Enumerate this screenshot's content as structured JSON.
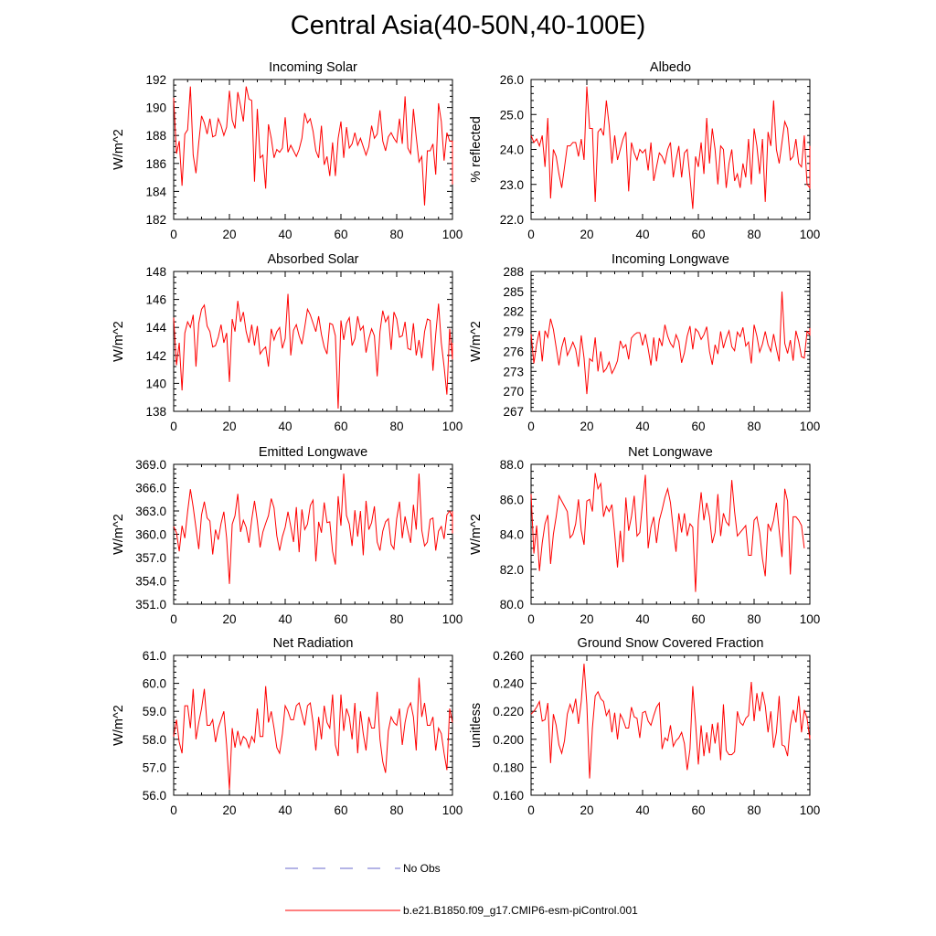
{
  "figure": {
    "title": "Central Asia(40-50N,40-100E)",
    "series_color": "#ff0000",
    "obs_color": "#6a6acd",
    "legend": [
      {
        "label": "No Obs",
        "style": "dashed",
        "color": "#6a6acd"
      },
      {
        "label": "b.e21.B1850.f09_g17.CMIP6-esm-piControl.001",
        "style": "solid",
        "color": "#ff0000"
      }
    ]
  },
  "chart_data": [
    {
      "type": "line",
      "id": "incoming-solar",
      "title": "Incoming Solar",
      "ylabel": "W/m^2",
      "xlabel": "",
      "xlim": [
        0,
        100
      ],
      "xticks": [
        0,
        20,
        40,
        60,
        80,
        100
      ],
      "xtick_labels": [
        "0",
        "20",
        "40",
        "60",
        "80",
        "100"
      ],
      "ylim": [
        182,
        192
      ],
      "yticks": [
        182,
        184,
        186,
        188,
        190,
        192
      ],
      "ytick_labels": [
        "182",
        "184",
        "186",
        "188",
        "190",
        "192"
      ],
      "x0": 0,
      "dx": 1,
      "values": [
        190.7,
        186.7,
        187.6,
        184.4,
        188.1,
        188.4,
        191.5,
        186.6,
        185.3,
        187.5,
        189.4,
        188.9,
        188.1,
        189.2,
        187.9,
        188.0,
        189.2,
        188.7,
        188.0,
        188.6,
        191.2,
        189.1,
        188.5,
        191.1,
        190.1,
        189.0,
        191.5,
        190.6,
        190.5,
        184.7,
        189.9,
        186.4,
        186.6,
        184.2,
        188.8,
        187.8,
        186.4,
        187.0,
        186.8,
        187.1,
        189.3,
        186.8,
        187.3,
        186.9,
        186.5,
        187.0,
        187.8,
        189.6,
        188.9,
        189.2,
        188.3,
        186.9,
        186.4,
        188.7,
        185.9,
        186.5,
        185.1,
        187.5,
        185.1,
        187.8,
        189.0,
        186.4,
        188.6,
        187.1,
        187.4,
        188.2,
        187.3,
        187.8,
        187.2,
        186.6,
        187.2,
        188.7,
        187.8,
        188.1,
        189.8,
        187.6,
        186.9,
        187.9,
        188.2,
        187.8,
        187.5,
        189.2,
        187.4,
        190.8,
        187.1,
        186.7,
        189.9,
        187.9,
        186.1,
        186.5,
        183.0,
        186.9,
        186.9,
        187.4,
        185.2,
        190.3,
        189.0,
        186.2,
        188.2,
        187.6,
        187.6,
        185.5,
        184.5
      ]
    },
    {
      "type": "line",
      "id": "albedo",
      "title": "Albedo",
      "ylabel": "% reflected",
      "xlabel": "",
      "xlim": [
        0,
        100
      ],
      "xticks": [
        0,
        20,
        40,
        60,
        80,
        100
      ],
      "xtick_labels": [
        "0",
        "20",
        "40",
        "60",
        "80",
        "100"
      ],
      "ylim": [
        22.0,
        26.0
      ],
      "yticks": [
        22.0,
        23.0,
        24.0,
        25.0,
        26.0
      ],
      "ytick_labels": [
        "22.0",
        "23.0",
        "24.0",
        "25.0",
        "26.0"
      ],
      "x0": 0,
      "dx": 1,
      "values": [
        24.4,
        24.2,
        24.3,
        24.1,
        24.4,
        23.5,
        24.9,
        22.6,
        24.0,
        23.8,
        23.3,
        22.9,
        23.5,
        24.1,
        24.1,
        24.2,
        24.2,
        23.8,
        24.3,
        23.7,
        25.8,
        24.6,
        24.6,
        22.5,
        24.5,
        24.6,
        24.4,
        25.4,
        24.7,
        23.6,
        24.4,
        23.7,
        24.0,
        24.3,
        24.5,
        22.8,
        24.2,
        23.9,
        23.7,
        24.0,
        23.9,
        24.0,
        23.4,
        24.2,
        23.1,
        23.5,
        23.9,
        23.8,
        23.6,
        24.0,
        24.2,
        23.2,
        23.7,
        24.1,
        23.2,
        23.9,
        24.0,
        23.2,
        22.3,
        23.8,
        23.5,
        24.2,
        23.3,
        24.9,
        23.6,
        24.6,
        24.0,
        23.0,
        24.1,
        24.0,
        22.9,
        23.6,
        24.0,
        23.1,
        23.3,
        22.9,
        23.6,
        23.2,
        24.3,
        23.0,
        24.6,
        24.1,
        23.3,
        24.3,
        22.5,
        24.5,
        24.1,
        25.4,
        24.0,
        23.6,
        24.2,
        24.8,
        24.6,
        23.7,
        23.8,
        24.3,
        23.6,
        23.5,
        24.4,
        23.0,
        22.9,
        24.1,
        23.3
      ]
    },
    {
      "type": "line",
      "id": "absorbed-solar",
      "title": "Absorbed Solar",
      "ylabel": "W/m^2",
      "xlabel": "",
      "xlim": [
        0,
        100
      ],
      "xticks": [
        0,
        20,
        40,
        60,
        80,
        100
      ],
      "xtick_labels": [
        "0",
        "20",
        "40",
        "60",
        "80",
        "100"
      ],
      "ylim": [
        138,
        148
      ],
      "yticks": [
        138,
        140,
        142,
        144,
        146,
        148
      ],
      "ytick_labels": [
        "138",
        "140",
        "142",
        "144",
        "146",
        "148"
      ],
      "x0": 0,
      "dx": 1,
      "values": [
        144.7,
        141.3,
        142.9,
        139.5,
        143.6,
        144.4,
        144.0,
        144.9,
        141.2,
        144.3,
        145.3,
        145.6,
        144.1,
        143.7,
        142.6,
        142.7,
        143.3,
        144.2,
        142.9,
        143.6,
        140.1,
        144.6,
        143.7,
        145.9,
        144.4,
        145.1,
        143.7,
        142.9,
        144.2,
        142.7,
        144.1,
        142.1,
        142.4,
        142.6,
        141.2,
        143.9,
        143.1,
        143.7,
        144.0,
        142.5,
        143.2,
        146.4,
        142.0,
        143.8,
        144.2,
        143.4,
        142.8,
        144.0,
        145.3,
        144.9,
        144.3,
        143.7,
        144.8,
        143.5,
        142.6,
        142.1,
        144.3,
        144.2,
        143.4,
        138.2,
        144.5,
        143.1,
        144.3,
        144.7,
        142.7,
        143.2,
        144.8,
        143.8,
        144.1,
        142.2,
        143.2,
        143.9,
        143.4,
        140.5,
        143.7,
        145.2,
        144.4,
        144.8,
        142.4,
        145.1,
        144.6,
        143.3,
        143.4,
        144.4,
        142.5,
        142.4,
        144.3,
        142.0,
        143.1,
        141.8,
        143.7,
        144.6,
        144.5,
        140.9,
        143.5,
        145.7,
        142.9,
        141.2,
        139.2,
        143.9,
        141.7,
        142.1,
        142.9,
        142.0
      ]
    },
    {
      "type": "line",
      "id": "incoming-longwave",
      "title": "Incoming Longwave",
      "ylabel": "W/m^2",
      "xlabel": "",
      "xlim": [
        0,
        100
      ],
      "xticks": [
        0,
        20,
        40,
        60,
        80,
        100
      ],
      "xtick_labels": [
        "0",
        "20",
        "40",
        "60",
        "80",
        "100"
      ],
      "ylim": [
        267,
        288
      ],
      "yticks": [
        267,
        270,
        273,
        276,
        279,
        282,
        285,
        288
      ],
      "ytick_labels": [
        "267",
        "270",
        "273",
        "276",
        "279",
        "282",
        "285",
        "288"
      ],
      "x0": 0,
      "dx": 1,
      "values": [
        278.6,
        274.2,
        277.1,
        279.1,
        274.5,
        279.1,
        278.1,
        280.9,
        279.3,
        276.6,
        273.9,
        276.6,
        278.1,
        275.4,
        276.3,
        277.4,
        276.3,
        273.7,
        278.4,
        275.0,
        269.6,
        274.9,
        274.5,
        278.1,
        273.0,
        276.0,
        272.9,
        273.4,
        274.4,
        272.7,
        273.5,
        274.6,
        277.6,
        276.5,
        277.0,
        274.8,
        278.0,
        278.5,
        278.8,
        278.8,
        276.9,
        278.6,
        276.4,
        273.9,
        278.1,
        274.5,
        278.0,
        276.8,
        280.0,
        278.3,
        277.2,
        276.6,
        278.5,
        277.5,
        274.3,
        275.8,
        278.3,
        279.8,
        276.3,
        279.4,
        278.9,
        277.8,
        278.5,
        279.7,
        276.0,
        274.0,
        277.0,
        275.6,
        279.0,
        276.5,
        278.0,
        279.1,
        276.7,
        276.1,
        278.9,
        278.2,
        279.6,
        276.8,
        277.4,
        274.2,
        280.0,
        278.3,
        275.9,
        277.1,
        279.0,
        277.0,
        276.0,
        278.6,
        276.4,
        274.5,
        285.0,
        277.2,
        275.7,
        277.7,
        274.6,
        279.1,
        277.5,
        275.2,
        275.0,
        279.0,
        278.5,
        279.5
      ]
    },
    {
      "type": "line",
      "id": "emitted-longwave",
      "title": "Emitted Longwave",
      "ylabel": "W/m^2",
      "xlabel": "",
      "xlim": [
        0,
        100
      ],
      "xticks": [
        0,
        20,
        40,
        60,
        80,
        100
      ],
      "xtick_labels": [
        "0",
        "20",
        "40",
        "60",
        "80",
        "100"
      ],
      "ylim": [
        351.0,
        369.0
      ],
      "yticks": [
        351.0,
        354.0,
        357.0,
        360.0,
        363.0,
        366.0,
        369.0
      ],
      "ytick_labels": [
        "351.0",
        "354.0",
        "357.0",
        "360.0",
        "363.0",
        "366.0",
        "369.0"
      ],
      "x0": 0,
      "dx": 1,
      "values": [
        361.0,
        360.2,
        357.8,
        361.1,
        359.5,
        362.9,
        365.8,
        363.5,
        360.8,
        358.1,
        362.5,
        364.2,
        362.1,
        361.7,
        357.4,
        360.6,
        359.3,
        361.4,
        362.9,
        359.5,
        353.6,
        361.3,
        362.4,
        365.2,
        360.3,
        361.8,
        360.9,
        358.9,
        361.9,
        364.3,
        361.7,
        358.3,
        360.3,
        361.4,
        362.4,
        364.6,
        363.4,
        359.8,
        357.9,
        359.7,
        360.9,
        362.9,
        361.0,
        359.0,
        363.5,
        357.7,
        363.2,
        360.6,
        361.3,
        363.7,
        364.4,
        356.5,
        361.6,
        360.2,
        364.1,
        361.5,
        361.6,
        357.8,
        356.1,
        364.9,
        361.1,
        367.8,
        362.4,
        361.3,
        358.5,
        363.1,
        359.7,
        363.0,
        357.3,
        364.3,
        360.6,
        361.5,
        363.6,
        359.0,
        357.9,
        360.4,
        361.6,
        362.0,
        358.7,
        358.1,
        362.0,
        364.2,
        359.5,
        362.3,
        360.5,
        358.9,
        363.8,
        360.6,
        367.8,
        360.5,
        358.5,
        359.0,
        361.9,
        362.1,
        357.9,
        360.4,
        361.0,
        359.4,
        362.5,
        363.0,
        362.2,
        360.1,
        363.0
      ]
    },
    {
      "type": "line",
      "id": "net-longwave",
      "title": "Net Longwave",
      "ylabel": "W/m^2",
      "xlabel": "",
      "xlim": [
        0,
        100
      ],
      "xticks": [
        0,
        20,
        40,
        60,
        80,
        100
      ],
      "xtick_labels": [
        "0",
        "20",
        "40",
        "60",
        "80",
        "100"
      ],
      "ylim": [
        80.0,
        88.0
      ],
      "yticks": [
        80.0,
        82.0,
        84.0,
        86.0,
        88.0
      ],
      "ytick_labels": [
        "80.0",
        "82.0",
        "84.0",
        "86.0",
        "88.0"
      ],
      "x0": 0,
      "dx": 1,
      "values": [
        86.3,
        82.9,
        84.5,
        81.9,
        83.5,
        84.6,
        85.1,
        82.3,
        84.0,
        85.0,
        86.2,
        85.9,
        85.6,
        85.3,
        83.8,
        84.0,
        84.6,
        86.0,
        84.2,
        83.4,
        85.9,
        86.0,
        85.3,
        87.5,
        86.6,
        86.9,
        85.0,
        85.6,
        85.3,
        85.7,
        84.0,
        82.1,
        84.2,
        82.4,
        86.1,
        84.2,
        85.0,
        86.2,
        83.9,
        84.1,
        85.8,
        87.4,
        83.2,
        84.4,
        85.0,
        83.5,
        84.8,
        85.4,
        86.1,
        86.6,
        85.8,
        84.3,
        83.0,
        85.2,
        84.1,
        85.2,
        83.9,
        84.6,
        84.4,
        80.7,
        84.8,
        86.4,
        84.8,
        85.8,
        85.0,
        83.5,
        84.1,
        86.3,
        83.9,
        85.2,
        84.7,
        84.5,
        87.1,
        85.3,
        83.9,
        84.1,
        84.3,
        84.5,
        82.8,
        82.8,
        84.8,
        85.0,
        84.1,
        82.6,
        81.6,
        84.6,
        84.2,
        84.8,
        85.8,
        84.2,
        82.7,
        86.6,
        85.9,
        81.7,
        85.0,
        85.0,
        84.8,
        84.5,
        83.2
      ]
    },
    {
      "type": "line",
      "id": "net-radiation",
      "title": "Net Radiation",
      "ylabel": "W/m^2",
      "xlabel": "",
      "xlim": [
        0,
        100
      ],
      "xticks": [
        0,
        20,
        40,
        60,
        80,
        100
      ],
      "xtick_labels": [
        "0",
        "20",
        "40",
        "60",
        "80",
        "100"
      ],
      "ylim": [
        56.0,
        61.0
      ],
      "yticks": [
        56.0,
        57.0,
        58.0,
        59.0,
        60.0,
        61.0
      ],
      "ytick_labels": [
        "56.0",
        "57.0",
        "58.0",
        "59.0",
        "60.0",
        "61.0"
      ],
      "x0": 0,
      "dx": 1,
      "values": [
        58.1,
        58.7,
        57.9,
        57.5,
        59.2,
        59.2,
        58.4,
        59.8,
        58.0,
        58.6,
        59.1,
        59.8,
        58.5,
        58.5,
        58.7,
        57.9,
        58.4,
        58.7,
        59.0,
        57.8,
        56.2,
        58.4,
        57.7,
        58.3,
        57.8,
        58.1,
        58.0,
        57.7,
        58.1,
        57.9,
        59.1,
        58.1,
        58.1,
        59.9,
        58.6,
        59.0,
        58.4,
        57.7,
        57.5,
        58.2,
        59.2,
        59.0,
        58.7,
        58.7,
        59.2,
        59.3,
        58.9,
        58.5,
        59.2,
        59.3,
        58.6,
        57.6,
        58.8,
        58.0,
        59.2,
        58.6,
        58.4,
        59.6,
        57.8,
        57.4,
        59.6,
        58.3,
        59.1,
        58.8,
        58.0,
        59.3,
        57.5,
        59.0,
        58.2,
        57.6,
        58.8,
        58.4,
        58.4,
        59.7,
        58.0,
        57.2,
        56.8,
        58.3,
        58.8,
        58.6,
        58.5,
        59.1,
        57.8,
        58.6,
        59.1,
        59.3,
        58.8,
        57.6,
        60.2,
        58.8,
        59.3,
        58.5,
        58.5,
        58.8,
        57.6,
        58.4,
        58.2,
        57.5,
        56.9,
        59.1,
        58.6
      ]
    },
    {
      "type": "line",
      "id": "ground-snow-covered-fraction",
      "title": "Ground Snow Covered Fraction",
      "ylabel": "unitless",
      "xlabel": "",
      "xlim": [
        0,
        100
      ],
      "xticks": [
        0,
        20,
        40,
        60,
        80,
        100
      ],
      "xtick_labels": [
        "0",
        "20",
        "40",
        "60",
        "80",
        "100"
      ],
      "ylim": [
        0.16,
        0.26
      ],
      "yticks": [
        0.16,
        0.18,
        0.2,
        0.22,
        0.24,
        0.26
      ],
      "ytick_labels": [
        "0.160",
        "0.180",
        "0.200",
        "0.220",
        "0.240",
        "0.260"
      ],
      "x0": 0,
      "dx": 1,
      "values": [
        0.218,
        0.22,
        0.223,
        0.227,
        0.213,
        0.214,
        0.226,
        0.183,
        0.218,
        0.21,
        0.196,
        0.19,
        0.199,
        0.218,
        0.225,
        0.219,
        0.229,
        0.211,
        0.227,
        0.254,
        0.225,
        0.172,
        0.208,
        0.231,
        0.234,
        0.229,
        0.227,
        0.217,
        0.221,
        0.205,
        0.219,
        0.2,
        0.218,
        0.214,
        0.208,
        0.208,
        0.223,
        0.216,
        0.215,
        0.201,
        0.219,
        0.22,
        0.213,
        0.21,
        0.217,
        0.223,
        0.226,
        0.193,
        0.201,
        0.199,
        0.21,
        0.195,
        0.199,
        0.201,
        0.205,
        0.197,
        0.178,
        0.193,
        0.238,
        0.212,
        0.182,
        0.21,
        0.188,
        0.205,
        0.19,
        0.211,
        0.197,
        0.212,
        0.185,
        0.225,
        0.192,
        0.189,
        0.189,
        0.191,
        0.22,
        0.212,
        0.21,
        0.215,
        0.217,
        0.241,
        0.213,
        0.233,
        0.22,
        0.234,
        0.224,
        0.205,
        0.22,
        0.194,
        0.205,
        0.231,
        0.196,
        0.195,
        0.188,
        0.21,
        0.221,
        0.212,
        0.231,
        0.205,
        0.221,
        0.215,
        0.2,
        0.203
      ]
    }
  ]
}
